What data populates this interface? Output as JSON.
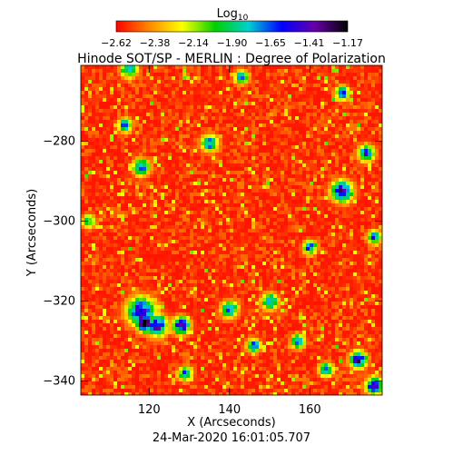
{
  "chart_data": {
    "type": "heatmap",
    "title": "Hinode SOT/SP - MERLIN : Degree of Polarization",
    "xlabel": "X (Arcseconds)",
    "ylabel": "Y (Arcseconds)",
    "footer": "24-Mar-2020 16:01:05.707",
    "xlim": [
      103,
      178
    ],
    "ylim": [
      -343.5,
      -261
    ],
    "x_ticks": [
      120,
      140,
      160
    ],
    "y_ticks": [
      -280,
      -300,
      -320,
      -340
    ],
    "colorbar": {
      "title_base": "Log",
      "title_sub": "10",
      "min": -2.62,
      "max": -1.17,
      "tick_labels": [
        "-2.62",
        "-2.38",
        "-2.14",
        "-1.90",
        "-1.65",
        "-1.41",
        "-1.17"
      ],
      "colors": [
        "#ff0000",
        "#ff8800",
        "#ffff00",
        "#00d000",
        "#00d0d0",
        "#0000ff",
        "#6600aa",
        "#000000"
      ]
    },
    "features": [
      {
        "x": 168,
        "y": -292.5,
        "value": -1.41,
        "r": 1.5
      },
      {
        "x": 118,
        "y": -322.5,
        "value": -1.41,
        "r": 2.0
      },
      {
        "x": 119,
        "y": -325.5,
        "value": -1.17,
        "r": 1.2
      },
      {
        "x": 122,
        "y": -326.0,
        "value": -1.41,
        "r": 1.5
      },
      {
        "x": 118,
        "y": -286.5,
        "value": -1.65,
        "r": 1.2
      },
      {
        "x": 115,
        "y": -262.0,
        "value": -1.65,
        "r": 1.2
      },
      {
        "x": 135,
        "y": -280.5,
        "value": -1.65,
        "r": 1.2
      },
      {
        "x": 114,
        "y": -276.0,
        "value": -1.65,
        "r": 1.0
      },
      {
        "x": 174,
        "y": -283.0,
        "value": -1.65,
        "r": 1.2
      },
      {
        "x": 176,
        "y": -304.0,
        "value": -1.65,
        "r": 1.0
      },
      {
        "x": 150,
        "y": -320.0,
        "value": -1.65,
        "r": 1.2
      },
      {
        "x": 140,
        "y": -322.0,
        "value": -1.65,
        "r": 1.2
      },
      {
        "x": 128,
        "y": -326.0,
        "value": -1.41,
        "r": 1.2
      },
      {
        "x": 172,
        "y": -334.5,
        "value": -1.41,
        "r": 1.2
      },
      {
        "x": 176,
        "y": -341.0,
        "value": -1.41,
        "r": 1.2
      },
      {
        "x": 157,
        "y": -330.0,
        "value": -1.65,
        "r": 1.0
      },
      {
        "x": 146,
        "y": -331.0,
        "value": -1.65,
        "r": 1.0
      },
      {
        "x": 160,
        "y": -306.5,
        "value": -1.65,
        "r": 1.0
      },
      {
        "x": 168,
        "y": -268.0,
        "value": -1.65,
        "r": 1.0
      },
      {
        "x": 143,
        "y": -264.0,
        "value": -1.65,
        "r": 1.0
      },
      {
        "x": 164,
        "y": -337.0,
        "value": -1.65,
        "r": 1.0
      },
      {
        "x": 105,
        "y": -300.0,
        "value": -1.9,
        "r": 1.0
      },
      {
        "x": 129,
        "y": -338.0,
        "value": -1.65,
        "r": 1.0
      }
    ]
  }
}
